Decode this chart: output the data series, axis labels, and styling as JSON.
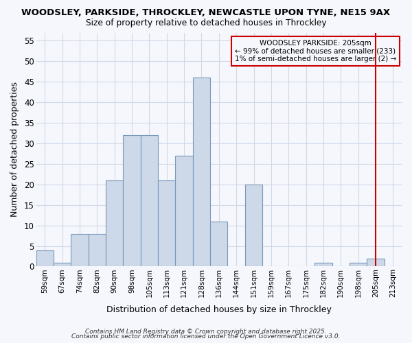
{
  "title1": "WOODSLEY, PARKSIDE, THROCKLEY, NEWCASTLE UPON TYNE, NE15 9AX",
  "title2": "Size of property relative to detached houses in Throckley",
  "xlabel": "Distribution of detached houses by size in Throckley",
  "ylabel": "Number of detached properties",
  "categories": [
    "59sqm",
    "67sqm",
    "74sqm",
    "82sqm",
    "90sqm",
    "98sqm",
    "105sqm",
    "113sqm",
    "121sqm",
    "128sqm",
    "136sqm",
    "144sqm",
    "151sqm",
    "159sqm",
    "167sqm",
    "175sqm",
    "182sqm",
    "190sqm",
    "198sqm",
    "205sqm",
    "213sqm"
  ],
  "values": [
    4,
    1,
    8,
    8,
    21,
    32,
    32,
    21,
    27,
    46,
    11,
    0,
    20,
    0,
    0,
    0,
    1,
    0,
    1,
    2,
    0
  ],
  "bar_color": "#cdd8e8",
  "bar_edge_color": "#7799bb",
  "ylim": [
    0,
    57
  ],
  "yticks": [
    0,
    5,
    10,
    15,
    20,
    25,
    30,
    35,
    40,
    45,
    50,
    55
  ],
  "marker_index": 19,
  "marker_color": "#cc0000",
  "annotation_title": "WOODSLEY PARKSIDE: 205sqm",
  "annotation_line1": "← 99% of detached houses are smaller (233)",
  "annotation_line2": "1% of semi-detached houses are larger (2) →",
  "footer1": "Contains HM Land Registry data © Crown copyright and database right 2025.",
  "footer2": "Contains public sector information licensed under the Open Government Licence v3.0.",
  "background_color": "#f5f7fc",
  "grid_color": "#d0d8e8"
}
